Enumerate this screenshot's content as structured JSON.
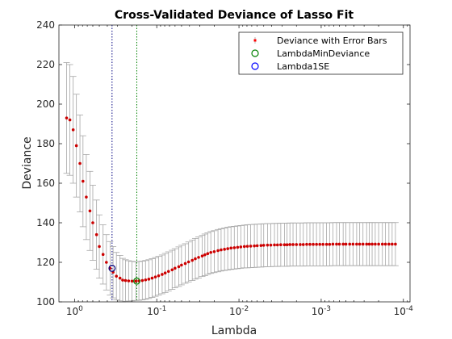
{
  "chart_data": {
    "type": "scatter",
    "title": "Cross-Validated Deviance of Lasso Fit",
    "xlabel": "Lambda",
    "ylabel": "Deviance",
    "x_scale": "log",
    "x_reversed": true,
    "xlim": [
      1.55,
      8.3e-05
    ],
    "ylim": [
      100,
      240
    ],
    "yticks": [
      100,
      120,
      140,
      160,
      180,
      200,
      220,
      240
    ],
    "yticklabels": [
      "100",
      "120",
      "140",
      "160",
      "180",
      "200",
      "220",
      "240"
    ],
    "xticks": [
      1,
      0.1,
      0.01,
      0.001,
      0.0001
    ],
    "xticklabels": [
      {
        "base": "10",
        "exp": "0"
      },
      {
        "base": "10",
        "exp": "-1"
      },
      {
        "base": "10",
        "exp": "-2"
      },
      {
        "base": "10",
        "exp": "-3"
      },
      {
        "base": "10",
        "exp": "-4"
      }
    ],
    "grid": false,
    "legend_position": "top-right",
    "legend": [
      {
        "label": "Deviance with Error Bars",
        "marker": "dot-errorbar",
        "color": "#ff0000"
      },
      {
        "label": "LambdaMinDeviance",
        "marker": "circle",
        "color": "#008000"
      },
      {
        "label": "Lambda1SE",
        "marker": "circle",
        "color": "#0000ff"
      }
    ],
    "lambda_min_deviance": {
      "lambda": 0.175,
      "deviance": 110.5
    },
    "lambda_1se": {
      "lambda": 0.35,
      "deviance": 117
    },
    "colors": {
      "point": "#cc0000",
      "errorbar": "#a6a6a6",
      "min_line": "#008000",
      "se_line": "#000080"
    },
    "series": [
      {
        "name": "Deviance with Error Bars",
        "x": [
          1.25,
          1.14,
          1.04,
          0.95,
          0.86,
          0.79,
          0.72,
          0.65,
          0.6,
          0.54,
          0.5,
          0.45,
          0.41,
          0.37,
          0.34,
          0.31,
          0.28,
          0.26,
          0.24,
          0.22,
          0.2,
          0.18,
          0.165,
          0.15,
          0.137,
          0.125,
          0.114,
          0.104,
          0.095,
          0.086,
          0.079,
          0.072,
          0.065,
          0.06,
          0.054,
          0.05,
          0.045,
          0.041,
          0.037,
          0.034,
          0.031,
          0.028,
          0.026,
          0.024,
          0.022,
          0.02,
          0.018,
          0.0165,
          0.015,
          0.0137,
          0.0125,
          0.0114,
          0.0104,
          0.0095,
          0.0086,
          0.0079,
          0.0072,
          0.0065,
          0.006,
          0.0054,
          0.005,
          0.0045,
          0.0041,
          0.0037,
          0.0034,
          0.0031,
          0.0028,
          0.0026,
          0.0024,
          0.0022,
          0.002,
          0.0018,
          0.00165,
          0.0015,
          0.00137,
          0.00125,
          0.00114,
          0.00104,
          0.00095,
          0.00086,
          0.00079,
          0.00072,
          0.00065,
          0.0006,
          0.00054,
          0.0005,
          0.00045,
          0.00041,
          0.00037,
          0.00034,
          0.00031,
          0.00028,
          0.00026,
          0.00024,
          0.00022,
          0.0002,
          0.00018,
          0.000165,
          0.00015,
          0.000137,
          0.000125
        ],
        "y": [
          193,
          192,
          187,
          179,
          170,
          161,
          153,
          146,
          140,
          134,
          128,
          124,
          120,
          117,
          115,
          113,
          112,
          111,
          110.8,
          110.6,
          110.5,
          110.5,
          110.6,
          110.8,
          111.1,
          111.5,
          112,
          112.6,
          113.2,
          113.9,
          114.6,
          115.4,
          116.2,
          117,
          117.8,
          118.6,
          119.4,
          120.2,
          121,
          121.8,
          122.5,
          123.2,
          123.8,
          124.4,
          125,
          125.4,
          125.9,
          126.3,
          126.6,
          126.9,
          127.2,
          127.4,
          127.6,
          127.8,
          128,
          128.1,
          128.2,
          128.3,
          128.4,
          128.5,
          128.6,
          128.7,
          128.7,
          128.8,
          128.8,
          128.9,
          128.9,
          128.9,
          129,
          129,
          129,
          129,
          129,
          129.1,
          129.1,
          129.1,
          129.1,
          129.1,
          129.1,
          129.1,
          129.1,
          129.2,
          129.2,
          129.2,
          129.2,
          129.2,
          129.2,
          129.2,
          129.2,
          129.2,
          129.2,
          129.2,
          129.2,
          129.2,
          129.2,
          129.2,
          129.2,
          129.2,
          129.2,
          129.2,
          129.2
        ],
        "error": [
          28,
          28,
          27,
          26,
          24.5,
          23,
          21.5,
          20,
          19,
          17.5,
          16,
          15,
          14,
          13.5,
          13,
          12,
          11.5,
          11,
          10.5,
          10.2,
          10,
          9.8,
          9.8,
          9.8,
          9.8,
          9.8,
          9.8,
          9.8,
          9.8,
          9.8,
          9.9,
          9.9,
          9.9,
          9.9,
          10,
          10,
          10,
          10.1,
          10.2,
          10.3,
          10.4,
          10.4,
          10.5,
          10.5,
          10.6,
          10.6,
          10.7,
          10.7,
          10.7,
          10.8,
          10.8,
          10.8,
          10.8,
          10.8,
          10.8,
          10.9,
          10.9,
          10.9,
          10.9,
          10.9,
          10.9,
          10.9,
          10.9,
          10.9,
          10.9,
          10.9,
          10.9,
          10.9,
          10.9,
          10.9,
          10.9,
          10.9,
          10.9,
          10.9,
          10.9,
          10.9,
          10.9,
          10.9,
          10.9,
          10.9,
          10.9,
          10.9,
          10.9,
          10.9,
          10.9,
          10.9,
          10.9,
          10.9,
          10.9,
          10.9,
          10.9,
          10.9,
          10.9,
          10.9,
          10.9,
          10.9,
          10.9,
          10.9,
          10.9,
          10.9,
          10.9
        ]
      }
    ]
  }
}
